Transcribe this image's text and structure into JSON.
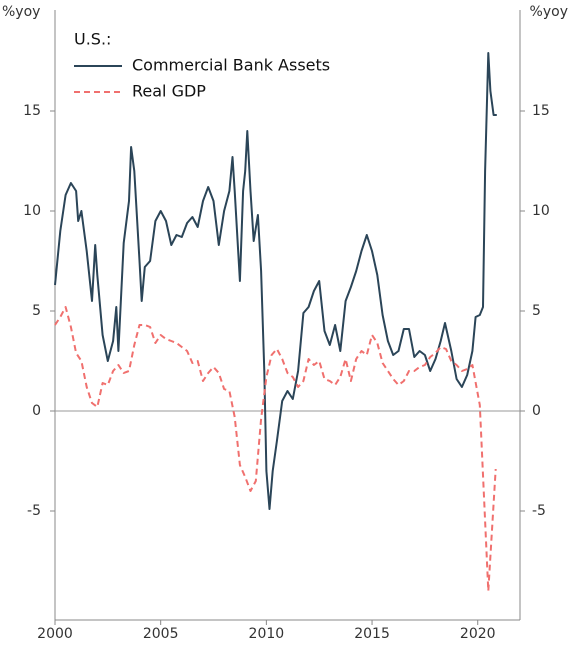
{
  "chart_data": {
    "type": "line",
    "y_label": "%yoy",
    "y2_label": "%yoy",
    "legend_title": "U.S.:",
    "legend": "upper-left",
    "xlim": [
      2000,
      2022
    ],
    "xticks": [
      2000,
      2005,
      2010,
      2015,
      2020
    ],
    "ylim": [
      -10.45,
      20.05
    ],
    "yticks": [
      -5,
      0,
      5,
      10,
      15
    ],
    "y2lim": [
      -10.45,
      20.05
    ],
    "y2ticks": [
      -5,
      0,
      5,
      10,
      15
    ],
    "series": [
      {
        "name": "Commercial Bank Assets",
        "color": "#2b4558",
        "dash": false,
        "x": [
          2000.0,
          2000.25,
          2000.5,
          2000.75,
          2001.0,
          2001.1,
          2001.25,
          2001.5,
          2001.75,
          2001.9,
          2002.0,
          2002.25,
          2002.5,
          2002.75,
          2002.9,
          2003.0,
          2003.25,
          2003.5,
          2003.6,
          2003.75,
          2004.0,
          2004.1,
          2004.25,
          2004.5,
          2004.75,
          2005.0,
          2005.25,
          2005.5,
          2005.75,
          2006.0,
          2006.25,
          2006.5,
          2006.75,
          2007.0,
          2007.25,
          2007.5,
          2007.75,
          2008.0,
          2008.25,
          2008.4,
          2008.5,
          2008.75,
          2008.9,
          2009.0,
          2009.1,
          2009.25,
          2009.4,
          2009.6,
          2009.75,
          2009.9,
          2010.0,
          2010.15,
          2010.3,
          2010.5,
          2010.75,
          2011.0,
          2011.25,
          2011.5,
          2011.75,
          2012.0,
          2012.25,
          2012.5,
          2012.75,
          2013.0,
          2013.25,
          2013.5,
          2013.75,
          2014.0,
          2014.25,
          2014.5,
          2014.75,
          2015.0,
          2015.25,
          2015.5,
          2015.75,
          2016.0,
          2016.25,
          2016.5,
          2016.75,
          2017.0,
          2017.25,
          2017.5,
          2017.75,
          2018.0,
          2018.25,
          2018.45,
          2018.75,
          2019.0,
          2019.25,
          2019.5,
          2019.75,
          2019.9,
          2020.1,
          2020.25,
          2020.35,
          2020.5,
          2020.6,
          2020.75,
          2020.9
        ],
        "values": [
          6.3,
          9,
          10.8,
          11.4,
          11,
          9.5,
          10,
          8,
          5.5,
          8.3,
          6.8,
          3.8,
          2.5,
          3.5,
          5.2,
          3,
          8.4,
          10.5,
          13.2,
          12,
          7.5,
          5.5,
          7.2,
          7.5,
          9.5,
          10,
          9.5,
          8.3,
          8.8,
          8.7,
          9.4,
          9.7,
          9.2,
          10.5,
          11.2,
          10.5,
          8.3,
          10,
          11,
          12.7,
          11,
          6.5,
          11,
          12,
          14,
          11,
          8.5,
          9.8,
          7,
          2,
          -3,
          -4.9,
          -3,
          -1.5,
          0.5,
          1,
          0.6,
          2,
          4.9,
          5.2,
          6,
          6.5,
          4,
          3.3,
          4.3,
          3,
          5.5,
          6.2,
          7,
          8,
          8.8,
          8,
          6.8,
          4.8,
          3.5,
          2.8,
          3,
          4.1,
          4.1,
          2.7,
          3,
          2.8,
          2,
          2.6,
          3.5,
          4.4,
          3,
          1.6,
          1.2,
          1.8,
          3,
          4.7,
          4.8,
          5.2,
          12,
          17.9,
          16,
          14.8,
          14.8
        ]
      },
      {
        "name": "Real GDP",
        "color": "#f0706e",
        "dash": true,
        "x": [
          2000.0,
          2000.25,
          2000.5,
          2000.75,
          2001.0,
          2001.25,
          2001.5,
          2001.75,
          2002.0,
          2002.25,
          2002.5,
          2002.75,
          2003.0,
          2003.25,
          2003.5,
          2003.75,
          2004.0,
          2004.25,
          2004.5,
          2004.75,
          2005.0,
          2005.25,
          2005.5,
          2005.75,
          2006.0,
          2006.25,
          2006.5,
          2006.75,
          2007.0,
          2007.25,
          2007.5,
          2007.75,
          2008.0,
          2008.25,
          2008.5,
          2008.75,
          2009.0,
          2009.25,
          2009.5,
          2009.75,
          2010.0,
          2010.25,
          2010.5,
          2010.75,
          2011.0,
          2011.25,
          2011.5,
          2011.75,
          2012.0,
          2012.25,
          2012.5,
          2012.75,
          2013.0,
          2013.25,
          2013.5,
          2013.75,
          2014.0,
          2014.25,
          2014.5,
          2014.75,
          2015.0,
          2015.25,
          2015.5,
          2015.75,
          2016.0,
          2016.25,
          2016.5,
          2016.75,
          2017.0,
          2017.25,
          2017.5,
          2017.75,
          2018.0,
          2018.25,
          2018.5,
          2018.75,
          2019.0,
          2019.25,
          2019.5,
          2019.75,
          2020.1,
          2020.5,
          2020.85
        ],
        "values": [
          4.3,
          4.7,
          5.2,
          4.2,
          2.9,
          2.5,
          1.2,
          0.4,
          0.2,
          1.4,
          1.3,
          2,
          2.3,
          1.9,
          2,
          3.3,
          4.3,
          4.3,
          4.2,
          3.4,
          3.8,
          3.6,
          3.5,
          3.4,
          3.2,
          3,
          2.4,
          2.5,
          1.5,
          1.9,
          2.2,
          1.9,
          1.1,
          1,
          -0.3,
          -2.7,
          -3.3,
          -4,
          -3.5,
          -0.4,
          1.7,
          2.8,
          3.1,
          2.6,
          1.9,
          1.7,
          1.2,
          1.5,
          2.6,
          2.3,
          2.5,
          1.6,
          1.5,
          1.3,
          1.7,
          2.6,
          1.5,
          2.6,
          3,
          2.8,
          3.8,
          3.4,
          2.4,
          2,
          1.6,
          1.3,
          1.5,
          2,
          2,
          2.2,
          2.3,
          2.7,
          2.9,
          3.2,
          3.1,
          2.5,
          2.3,
          2,
          2.1,
          2.3,
          0.3,
          -9,
          -2.9
        ]
      }
    ]
  }
}
